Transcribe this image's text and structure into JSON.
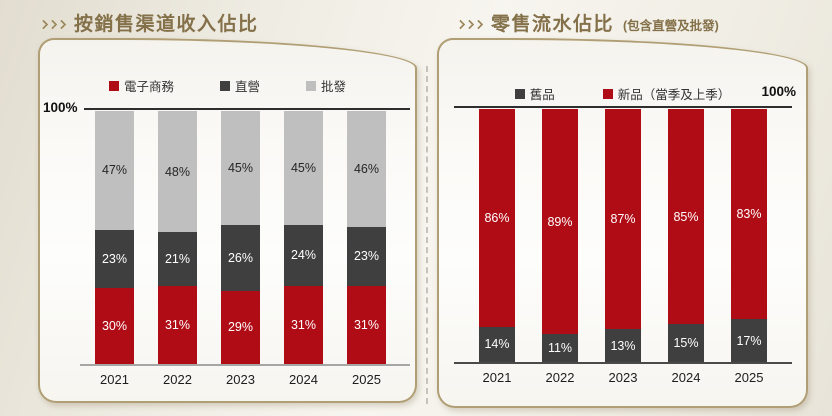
{
  "slide": {
    "accent_gold": "#84714a",
    "brand_red": "#b00c16",
    "dark_gray": "#3f3f3f",
    "light_gray": "#c0bfbf"
  },
  "chart_data": [
    {
      "type": "bar",
      "stacked": true,
      "title": "按銷售渠道收入佔比",
      "subtitle": "",
      "categories": [
        "2021",
        "2022",
        "2023",
        "2024",
        "2025"
      ],
      "series": [
        {
          "name": "電子商務",
          "color": "#b00c16",
          "label_color": "#ffffff",
          "values": [
            30,
            31,
            29,
            31,
            31
          ]
        },
        {
          "name": "直營",
          "color": "#3f3f3f",
          "label_color": "#ffffff",
          "values": [
            23,
            21,
            26,
            24,
            23
          ]
        },
        {
          "name": "批發",
          "color": "#c0bfbf",
          "label_color": "#262626",
          "values": [
            47,
            48,
            45,
            45,
            46
          ]
        }
      ],
      "value_suffix": "%",
      "ylim": [
        0,
        100
      ],
      "axis_max_label": "100%",
      "axis_max_label_side": "left",
      "legend_position": "top",
      "grid": false
    },
    {
      "type": "bar",
      "stacked": true,
      "title": "零售流水佔比",
      "subtitle": "(包含直營及批發)",
      "categories": [
        "2021",
        "2022",
        "2023",
        "2024",
        "2025"
      ],
      "series": [
        {
          "name": "舊品",
          "color": "#3f3f3f",
          "label_color": "#ffffff",
          "values": [
            14,
            11,
            13,
            15,
            17
          ]
        },
        {
          "name": "新品（當季及上季）",
          "color": "#b00c16",
          "label_color": "#ffffff",
          "values": [
            86,
            89,
            87,
            85,
            83
          ]
        }
      ],
      "value_suffix": "%",
      "ylim": [
        0,
        100
      ],
      "axis_max_label": "100%",
      "axis_max_label_side": "right",
      "legend_position": "top",
      "grid": false
    }
  ]
}
